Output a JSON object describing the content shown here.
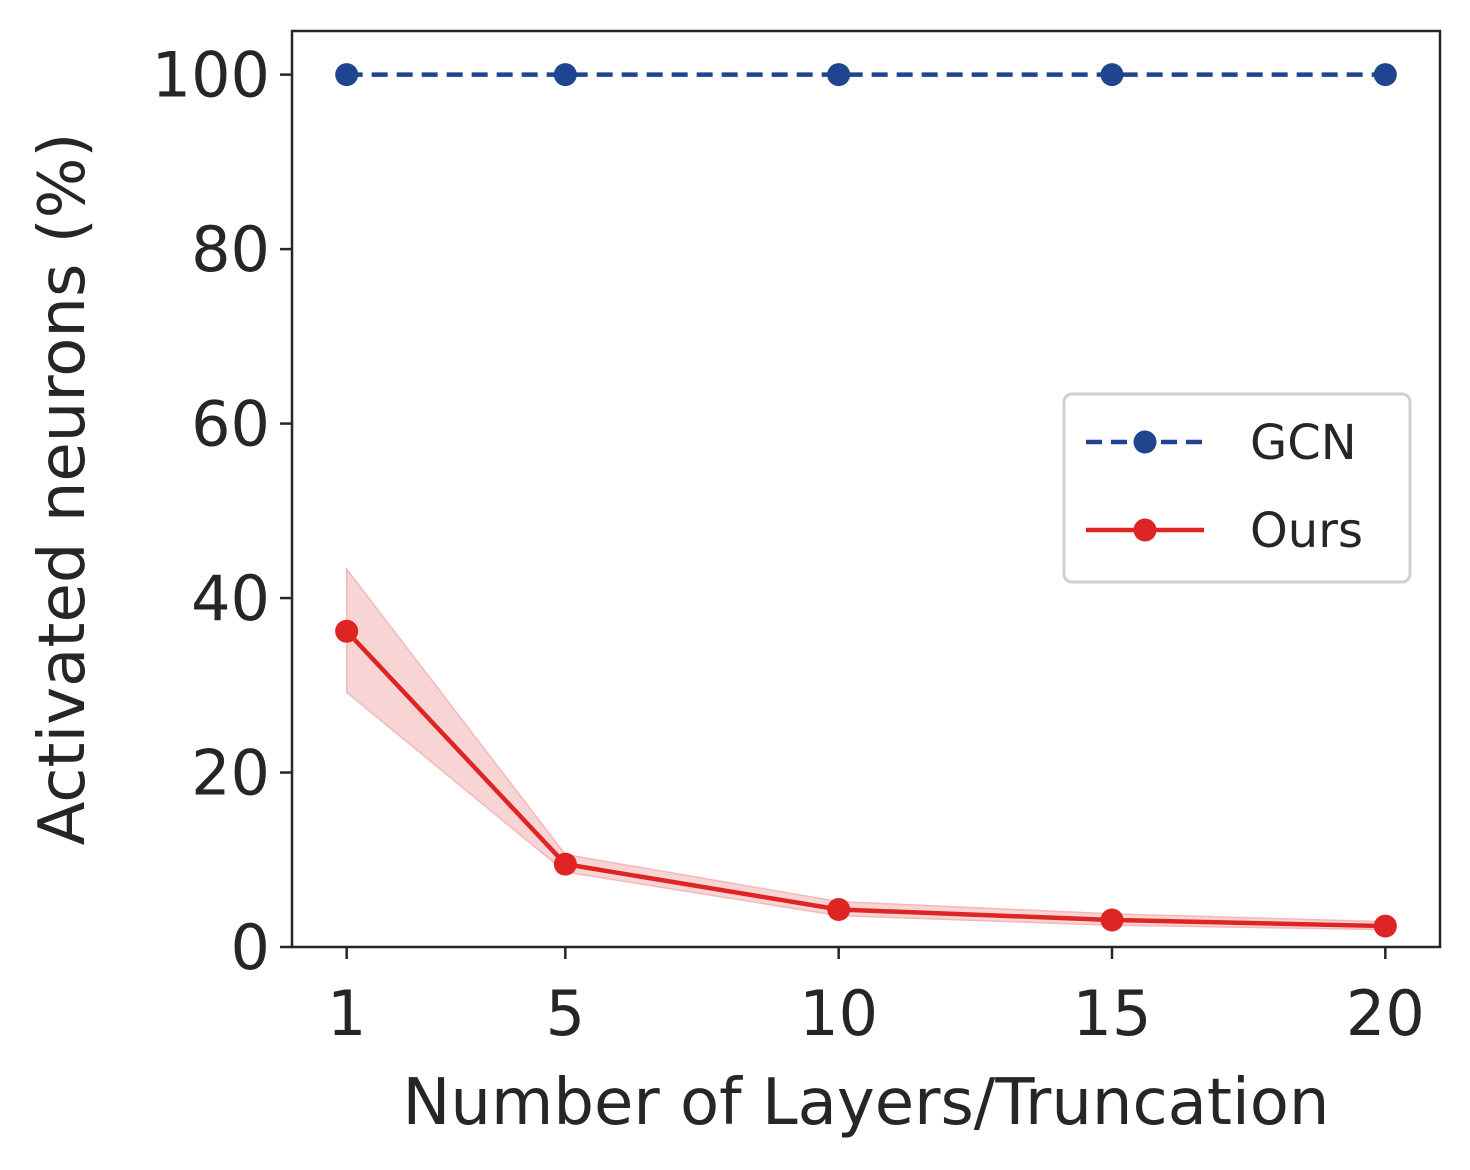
{
  "chart_data": {
    "type": "line",
    "title": "",
    "xlabel": "Number of Layers/Truncation",
    "ylabel": "Activated neurons (%)",
    "x": [
      1,
      5,
      10,
      15,
      20
    ],
    "xticks": [
      "1",
      "5",
      "10",
      "15",
      "20"
    ],
    "xlim": [
      0,
      21
    ],
    "yticks": [
      "0",
      "20",
      "40",
      "60",
      "80",
      "100"
    ],
    "ylim": [
      0,
      105
    ],
    "grid": false,
    "legend": {
      "position": "center-right"
    },
    "series": [
      {
        "name": "GCN",
        "values": [
          100,
          100,
          100,
          100,
          100
        ],
        "color": "#1f4591",
        "linestyle": "dashed",
        "marker": "circle"
      },
      {
        "name": "Ours",
        "values": [
          36.2,
          9.5,
          4.3,
          3.1,
          2.4
        ],
        "lower": [
          29.2,
          8.6,
          3.6,
          2.5,
          2.0
        ],
        "upper": [
          43.3,
          10.6,
          5.2,
          3.8,
          2.9
        ],
        "color": "#de2524",
        "band_color": "#f4b8b8",
        "linestyle": "solid",
        "marker": "circle"
      }
    ]
  }
}
